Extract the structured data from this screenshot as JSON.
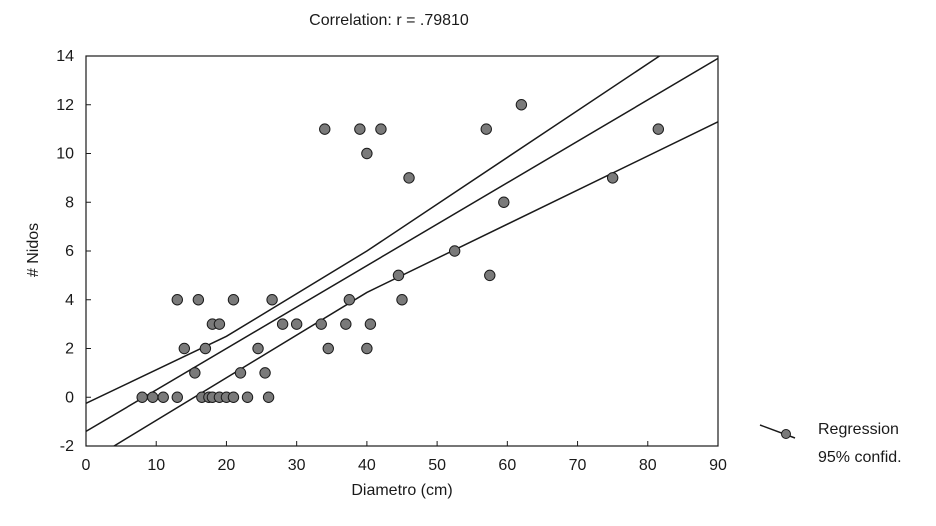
{
  "chart_data": {
    "type": "scatter",
    "title": "Correlation: r = .79810",
    "xlabel": "Diametro (cm)",
    "ylabel": "# Nidos",
    "xlim": [
      0,
      90
    ],
    "ylim": [
      -2,
      14
    ],
    "xticks": [
      0,
      10,
      20,
      30,
      40,
      50,
      60,
      70,
      80,
      90
    ],
    "yticks": [
      -2,
      0,
      2,
      4,
      6,
      8,
      10,
      12,
      14
    ],
    "grid": false,
    "legend": {
      "position": "right-bottom",
      "entries": [
        "Regression",
        "95% confid."
      ]
    },
    "regression": {
      "intercept": -1.4,
      "slope": 0.17
    },
    "confidence_band": {
      "upper": [
        [
          0,
          -0.25
        ],
        [
          20,
          2.5
        ],
        [
          40,
          6.0
        ],
        [
          90,
          15.6
        ]
      ],
      "lower": [
        [
          0,
          -2.7
        ],
        [
          40,
          4.3
        ],
        [
          90,
          11.3
        ]
      ]
    },
    "points": [
      [
        8,
        0
      ],
      [
        9.5,
        0
      ],
      [
        11,
        0
      ],
      [
        13,
        0
      ],
      [
        13,
        4
      ],
      [
        14,
        2
      ],
      [
        15.5,
        1
      ],
      [
        16,
        4
      ],
      [
        16.5,
        0
      ],
      [
        17,
        2
      ],
      [
        17.5,
        0
      ],
      [
        18,
        0
      ],
      [
        18,
        3
      ],
      [
        19,
        0
      ],
      [
        19,
        3
      ],
      [
        20,
        0
      ],
      [
        21,
        0
      ],
      [
        21,
        4
      ],
      [
        22,
        1
      ],
      [
        23,
        0
      ],
      [
        24.5,
        2
      ],
      [
        25.5,
        1
      ],
      [
        26,
        0
      ],
      [
        26.5,
        4
      ],
      [
        28,
        3
      ],
      [
        30,
        3
      ],
      [
        33.5,
        3
      ],
      [
        34,
        11
      ],
      [
        34.5,
        2
      ],
      [
        37,
        3
      ],
      [
        37.5,
        4
      ],
      [
        39,
        11
      ],
      [
        40,
        10
      ],
      [
        40,
        2
      ],
      [
        40.5,
        3
      ],
      [
        42,
        11
      ],
      [
        44.5,
        5
      ],
      [
        45,
        4
      ],
      [
        46,
        9
      ],
      [
        52.5,
        6
      ],
      [
        57,
        11
      ],
      [
        57.5,
        5
      ],
      [
        59.5,
        8
      ],
      [
        62,
        12
      ],
      [
        75,
        9
      ],
      [
        81.5,
        11
      ]
    ]
  },
  "colors": {
    "line": "#1a1a1a",
    "point_fill": "#7a7a7a",
    "point_stroke": "#1a1a1a"
  }
}
